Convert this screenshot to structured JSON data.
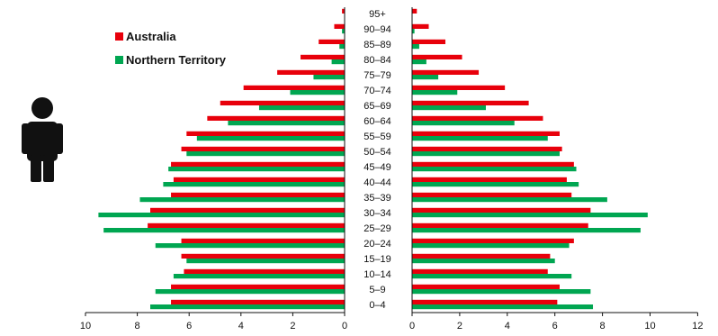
{
  "chart_data": {
    "type": "bar",
    "orientation": "horizontal",
    "layout": "population-pyramid",
    "categories": [
      "0–4",
      "5–9",
      "10–14",
      "15–19",
      "20–24",
      "25–29",
      "30–34",
      "35–39",
      "40–44",
      "45–49",
      "50–54",
      "55–59",
      "60–64",
      "65–69",
      "70–74",
      "75–79",
      "80–84",
      "85–89",
      "90–94",
      "95+"
    ],
    "series": [
      {
        "name": "Australia",
        "color": "#e8000b",
        "left_values": [
          6.7,
          6.7,
          6.2,
          6.3,
          6.3,
          7.6,
          7.5,
          6.7,
          6.6,
          6.7,
          6.3,
          6.1,
          5.3,
          4.8,
          3.9,
          2.6,
          1.7,
          1.0,
          0.4,
          0.1
        ],
        "right_values": [
          6.1,
          6.2,
          5.7,
          5.8,
          6.8,
          7.4,
          7.5,
          6.7,
          6.5,
          6.8,
          6.3,
          6.2,
          5.5,
          4.9,
          3.9,
          2.8,
          2.1,
          1.4,
          0.7,
          0.2
        ]
      },
      {
        "name": "Northern Territory",
        "color": "#00a651",
        "left_values": [
          7.5,
          7.3,
          6.6,
          6.1,
          7.3,
          9.3,
          9.5,
          7.9,
          7.0,
          6.8,
          6.1,
          5.7,
          4.5,
          3.3,
          2.1,
          1.2,
          0.5,
          0.2,
          0.1,
          0.0
        ],
        "right_values": [
          7.6,
          7.5,
          6.7,
          6.0,
          6.6,
          9.6,
          9.9,
          8.2,
          7.0,
          6.9,
          6.2,
          5.7,
          4.3,
          3.1,
          1.9,
          1.1,
          0.6,
          0.3,
          0.1,
          0.0
        ]
      }
    ],
    "left_axis": {
      "ticks": [
        10,
        8,
        6,
        4,
        2,
        0
      ],
      "range": [
        0,
        10
      ]
    },
    "right_axis": {
      "ticks": [
        0,
        2,
        4,
        6,
        8,
        10,
        12
      ],
      "range": [
        0,
        12
      ]
    },
    "legend": {
      "position": "top-left",
      "entries": [
        "Australia",
        "Northern Territory"
      ]
    },
    "grid": false
  },
  "icons": {
    "left": "male-figure-icon"
  }
}
